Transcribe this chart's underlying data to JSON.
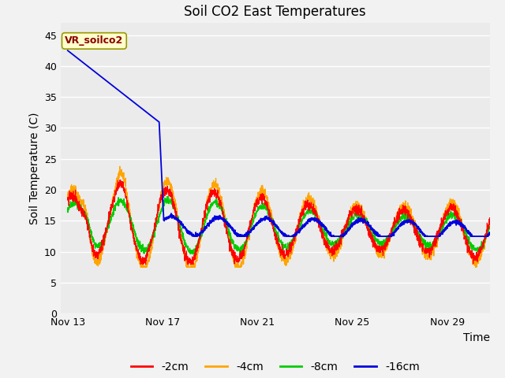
{
  "title": "Soil CO2 East Temperatures",
  "xlabel": "Time",
  "ylabel": "Soil Temperature (C)",
  "ylim": [
    0,
    47
  ],
  "yticks": [
    0,
    5,
    10,
    15,
    20,
    25,
    30,
    35,
    40,
    45
  ],
  "xtick_labels": [
    "Nov 13",
    "Nov 17",
    "Nov 21",
    "Nov 25",
    "Nov 29"
  ],
  "xtick_positions": [
    0,
    4,
    8,
    12,
    16
  ],
  "annotation_label": "VR_soilco2",
  "legend_entries": [
    "-2cm",
    "-4cm",
    "-8cm",
    "-16cm"
  ],
  "colors": {
    "2cm": "#ff0000",
    "4cm": "#ffa500",
    "8cm": "#00cc00",
    "16cm": "#0000dd"
  },
  "fig_bg": "#f2f2f2",
  "plot_bg": "#ebebeb",
  "grid_color": "#ffffff",
  "title_fontsize": 12,
  "axis_label_fontsize": 10,
  "tick_fontsize": 9,
  "legend_fontsize": 10
}
